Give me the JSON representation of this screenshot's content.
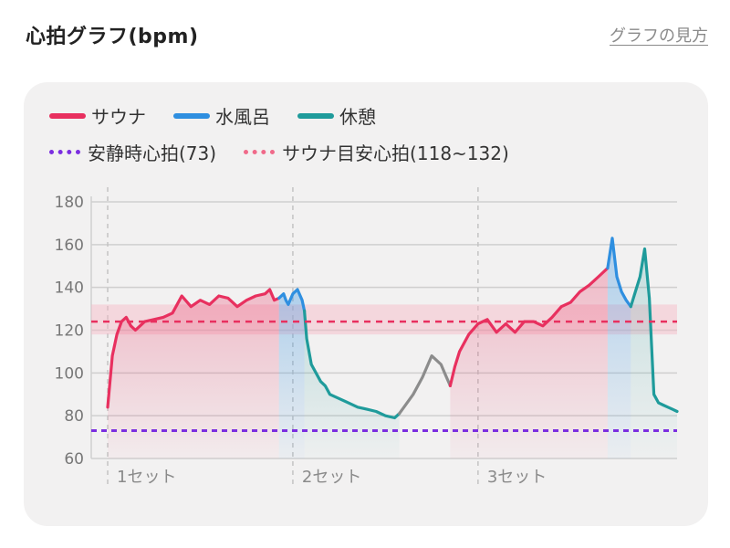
{
  "header": {
    "title": "心拍グラフ(bpm)",
    "link": "グラフの見方"
  },
  "legend": {
    "row1": [
      {
        "label": "サウナ",
        "color": "#e8305f"
      },
      {
        "label": "水風呂",
        "color": "#2f8fe0"
      },
      {
        "label": "休憩",
        "color": "#1f9b9b"
      }
    ],
    "row2": [
      {
        "label": "安静時心拍(73)",
        "color": "#7b2ee0"
      },
      {
        "label": "サウナ目安心拍(118~132)",
        "color": "#f06a8a"
      }
    ]
  },
  "chart_data": {
    "type": "line",
    "ylim": [
      60,
      180
    ],
    "yticks": [
      60,
      80,
      100,
      120,
      140,
      160,
      180
    ],
    "resting_hr": 73,
    "sauna_target_band": [
      118,
      132
    ],
    "sauna_target_line": 124,
    "sets": [
      "1セット",
      "2セット",
      "3セット"
    ],
    "x_range": [
      0,
      123
    ],
    "set_starts": [
      0,
      40,
      80
    ],
    "segments": [
      {
        "series": "sauna",
        "x": [
          0,
          1,
          2,
          3,
          4,
          5,
          6,
          7,
          8,
          10,
          12,
          14,
          16,
          18,
          20,
          22,
          24,
          26,
          28,
          30,
          32,
          34,
          35,
          36,
          37
        ],
        "y": [
          84,
          108,
          118,
          124,
          126,
          122,
          120,
          122,
          124,
          125,
          126,
          128,
          136,
          131,
          134,
          132,
          136,
          135,
          131,
          134,
          136,
          137,
          139,
          134,
          135
        ]
      },
      {
        "series": "cold_water",
        "x": [
          37,
          38,
          38.5,
          39,
          40,
          41,
          42,
          42.5
        ],
        "y": [
          135,
          137,
          134,
          132,
          137,
          139,
          134,
          129
        ]
      },
      {
        "series": "rest",
        "x": [
          42.5,
          43,
          44,
          45,
          46,
          47,
          48,
          50,
          52,
          54,
          56,
          58,
          60,
          62,
          63
        ],
        "y": [
          129,
          116,
          104,
          100,
          96,
          94,
          90,
          88,
          86,
          84,
          83,
          82,
          80,
          79,
          81
        ]
      },
      {
        "series": "other",
        "x": [
          63,
          64,
          66,
          68,
          70,
          72,
          73,
          74
        ],
        "y": [
          81,
          84,
          90,
          98,
          108,
          104,
          99,
          94
        ]
      },
      {
        "series": "sauna",
        "x": [
          74,
          75,
          76,
          78,
          80,
          82,
          84,
          86,
          88,
          90,
          92,
          94,
          96,
          98,
          100,
          102,
          104,
          106,
          108
        ],
        "y": [
          94,
          103,
          110,
          118,
          123,
          125,
          119,
          123,
          119,
          124,
          124,
          122,
          126,
          131,
          133,
          138,
          141,
          145,
          149
        ]
      },
      {
        "series": "cold_water",
        "x": [
          108,
          109,
          110,
          111,
          112,
          113
        ],
        "y": [
          149,
          163,
          145,
          138,
          134,
          131
        ]
      },
      {
        "series": "rest",
        "x": [
          113,
          114,
          115,
          116,
          117,
          118,
          119,
          120,
          121,
          122,
          123
        ],
        "y": [
          131,
          138,
          145,
          158,
          135,
          90,
          86,
          85,
          84,
          83,
          82
        ]
      }
    ]
  }
}
